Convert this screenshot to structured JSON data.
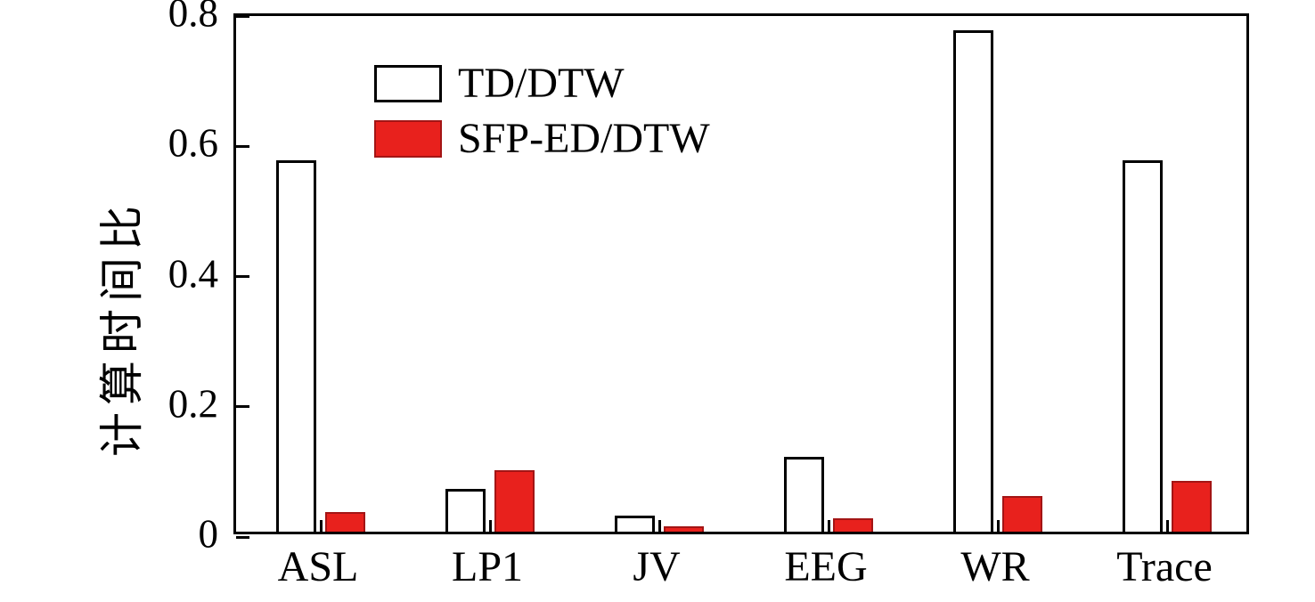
{
  "chart_data": {
    "type": "bar",
    "title": "",
    "ylabel": "计算时间比",
    "xlabel": "",
    "ylim": [
      0,
      0.8
    ],
    "yticks": [
      {
        "value": 0,
        "label": "0"
      },
      {
        "value": 0.2,
        "label": "0.2"
      },
      {
        "value": 0.4,
        "label": "0.4"
      },
      {
        "value": 0.6,
        "label": "0.6"
      },
      {
        "value": 0.8,
        "label": "0.8"
      }
    ],
    "categories": [
      "ASL",
      "LP1",
      "JV",
      "EEG",
      "WR",
      "Trace"
    ],
    "series": [
      {
        "name": "TD/DTW",
        "fill": "#ffffff",
        "edge": "#000000",
        "values": [
          0.57,
          0.065,
          0.025,
          0.115,
          0.77,
          0.57
        ]
      },
      {
        "name": "SFP-ED/DTW",
        "fill": "#e8211d",
        "edge": "#a31515",
        "values": [
          0.03,
          0.095,
          0.008,
          0.02,
          0.055,
          0.078
        ]
      }
    ],
    "legend_position": "top-left",
    "grid": false,
    "background": "#ffffff"
  }
}
